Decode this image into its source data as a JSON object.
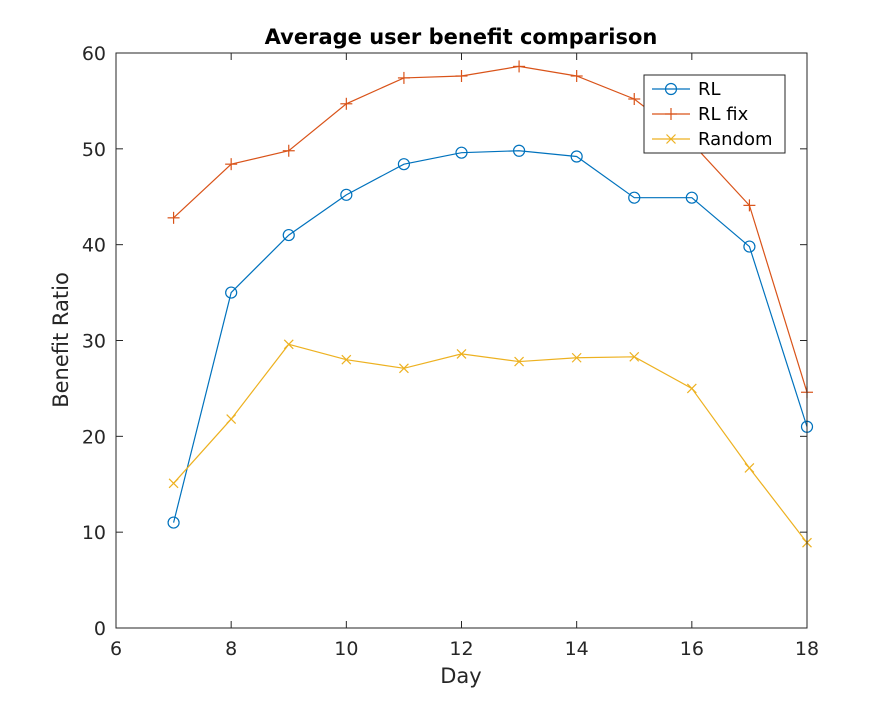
{
  "chart_data": {
    "type": "line",
    "title": "Average user benefit comparison",
    "xlabel": "Day",
    "ylabel": "Benefit Ratio",
    "xlim": [
      6,
      18
    ],
    "ylim": [
      0,
      60
    ],
    "xticks": [
      6,
      8,
      10,
      12,
      14,
      16,
      18
    ],
    "yticks": [
      0,
      10,
      20,
      30,
      40,
      50,
      60
    ],
    "grid": false,
    "legend_position": "top-right",
    "x": [
      7,
      8,
      9,
      10,
      11,
      12,
      13,
      14,
      15,
      16,
      17,
      18
    ],
    "series": [
      {
        "name": "RL",
        "color": "#0072BD",
        "marker": "circle",
        "values": [
          11.0,
          35.0,
          41.0,
          45.2,
          48.4,
          49.6,
          49.8,
          49.2,
          44.9,
          44.9,
          39.8,
          21.0
        ]
      },
      {
        "name": "RL fix",
        "color": "#D95319",
        "marker": "plus",
        "values": [
          42.8,
          48.4,
          49.8,
          54.7,
          57.4,
          57.6,
          58.6,
          57.6,
          55.2,
          50.6,
          44.1,
          24.6
        ]
      },
      {
        "name": "Random",
        "color": "#EDB120",
        "marker": "x",
        "values": [
          15.1,
          21.8,
          29.6,
          28.0,
          27.1,
          28.6,
          27.8,
          28.2,
          28.3,
          25.0,
          16.7,
          8.9
        ]
      }
    ]
  }
}
